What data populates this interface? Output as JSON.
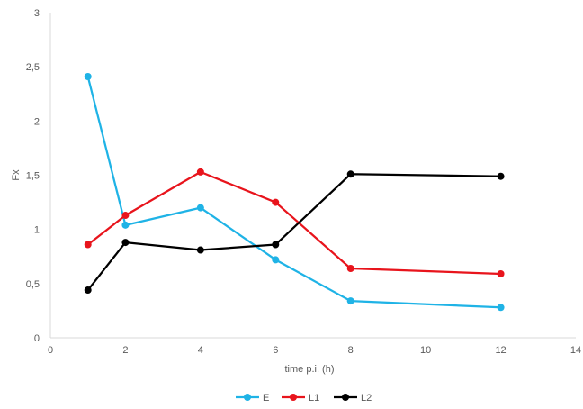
{
  "chart_data": {
    "type": "line",
    "title": "",
    "xlabel": "time p.i. (h)",
    "ylabel": "Fx",
    "xlim": [
      0,
      14
    ],
    "ylim": [
      0,
      3
    ],
    "x_ticks": [
      0,
      2,
      4,
      6,
      8,
      10,
      12,
      14
    ],
    "x_tick_labels": [
      "0",
      "2",
      "4",
      "6",
      "8",
      "10",
      "12",
      "14"
    ],
    "y_ticks": [
      0,
      0.5,
      1,
      1.5,
      2,
      2.5,
      3
    ],
    "y_tick_labels": [
      "0",
      "0,5",
      "1",
      "1,5",
      "2",
      "2,5",
      "3"
    ],
    "x": [
      1,
      2,
      4,
      6,
      8,
      12
    ],
    "grid": false,
    "legend_position": "bottom",
    "series": [
      {
        "name": "E",
        "color": "#1fb3e6",
        "values": [
          2.41,
          1.04,
          1.2,
          0.72,
          0.34,
          0.28
        ]
      },
      {
        "name": "L1",
        "color": "#e8141c",
        "values": [
          0.86,
          1.13,
          1.53,
          1.25,
          0.64,
          0.59
        ]
      },
      {
        "name": "L2",
        "color": "#000000",
        "values": [
          0.44,
          0.88,
          0.81,
          0.86,
          1.51,
          1.49
        ]
      }
    ]
  }
}
